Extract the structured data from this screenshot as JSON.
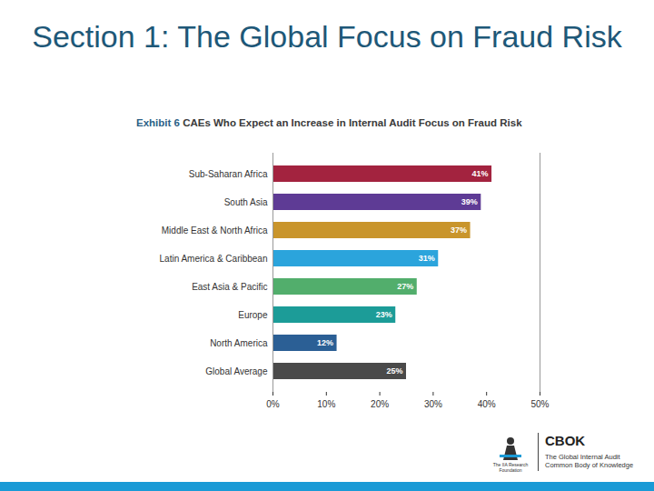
{
  "slide": {
    "heading": "Section 1: The Global Focus on Fraud Risk",
    "logo": {
      "organization": "The IIA Research Foundation",
      "name": "CBOK",
      "tagline": [
        "The Global Internal Audit",
        "Common Body of Knowledge"
      ]
    }
  },
  "chart_data": {
    "type": "bar",
    "orientation": "horizontal",
    "title": "Exhibit 6 CAEs Who Expect an Increase in Internal Audit Focus on Fraud Risk",
    "categories": [
      "Sub-Saharan Africa",
      "South Asia",
      "Middle East & North Africa",
      "Latin America & Caribbean",
      "East Asia & Pacific",
      "Europe",
      "North America",
      "Global Average"
    ],
    "values": [
      41,
      39,
      37,
      31,
      27,
      23,
      12,
      25
    ],
    "value_labels": [
      "41%",
      "39%",
      "37%",
      "31%",
      "27%",
      "23%",
      "12%",
      "25%"
    ],
    "colors": [
      "#a3233f",
      "#5e3b95",
      "#c9952c",
      "#2ba4dc",
      "#52ae6c",
      "#1c9c98",
      "#2b5f95",
      "#4a4a4a"
    ],
    "xlim": [
      0,
      50
    ],
    "xticks": [
      {
        "value": 0,
        "label": "0%"
      },
      {
        "value": 10,
        "label": "10%"
      },
      {
        "value": 20,
        "label": "20%"
      },
      {
        "value": 30,
        "label": "30%"
      },
      {
        "value": 40,
        "label": "40%"
      },
      {
        "value": 50,
        "label": "50%"
      }
    ],
    "grid": false,
    "data_labels": true
  }
}
